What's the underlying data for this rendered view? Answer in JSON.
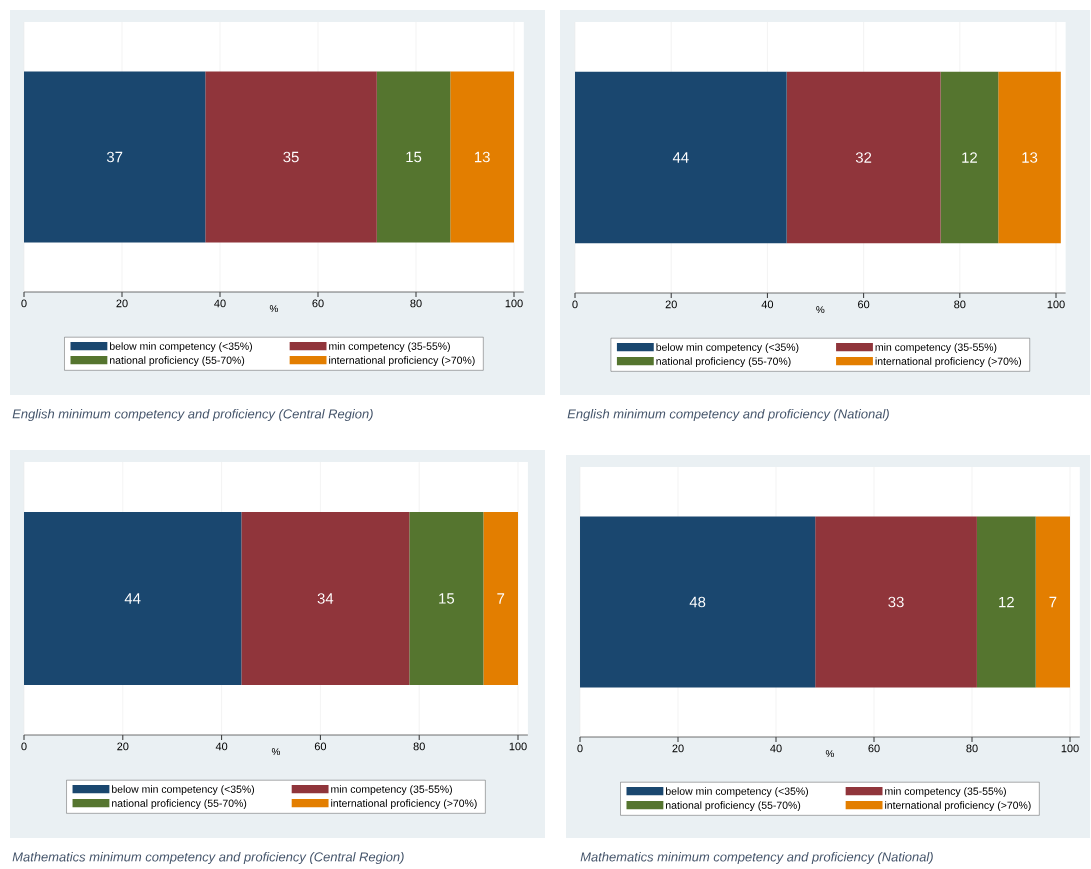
{
  "chart_data": [
    {
      "type": "bar",
      "orientation": "horizontal",
      "stacked": true,
      "categories": [
        null
      ],
      "series": [
        {
          "name": "below min competency (<35%)",
          "color": "#1a476f",
          "values": [
            37
          ]
        },
        {
          "name": "min competency (35-55%)",
          "color": "#90353b",
          "values": [
            35
          ]
        },
        {
          "name": "national proficiency (55-70%)",
          "color": "#55752f",
          "values": [
            15
          ]
        },
        {
          "name": "international proficiency (>70%)",
          "color": "#e37e00",
          "values": [
            13
          ]
        }
      ],
      "xlim": [
        0,
        102
      ],
      "xticks": [
        0,
        20,
        40,
        60,
        80,
        100
      ],
      "xlabel": "%",
      "grid": "x",
      "legend": "bottom",
      "data_labels": true,
      "annotations": [
        "English minimum competency and proficiency (Central Region)"
      ]
    },
    {
      "type": "bar",
      "orientation": "horizontal",
      "stacked": true,
      "categories": [
        null
      ],
      "series": [
        {
          "name": "below min competency (<35%)",
          "color": "#1a476f",
          "values": [
            44
          ]
        },
        {
          "name": "min competency (35-55%)",
          "color": "#90353b",
          "values": [
            32
          ]
        },
        {
          "name": "national proficiency (55-70%)",
          "color": "#55752f",
          "values": [
            12
          ]
        },
        {
          "name": "international proficiency (>70%)",
          "color": "#e37e00",
          "values": [
            13
          ]
        }
      ],
      "xlim": [
        0,
        102
      ],
      "xticks": [
        0,
        20,
        40,
        60,
        80,
        100
      ],
      "xlabel": "%",
      "grid": "x",
      "legend": "bottom",
      "data_labels": true,
      "annotations": [
        "English minimum competency and proficiency (National)"
      ]
    },
    {
      "type": "bar",
      "orientation": "horizontal",
      "stacked": true,
      "categories": [
        null
      ],
      "series": [
        {
          "name": "below min competency (<35%)",
          "color": "#1a476f",
          "values": [
            44
          ]
        },
        {
          "name": "min competency (35-55%)",
          "color": "#90353b",
          "values": [
            34
          ]
        },
        {
          "name": "national proficiency (55-70%)",
          "color": "#55752f",
          "values": [
            15
          ]
        },
        {
          "name": "international proficiency (>70%)",
          "color": "#e37e00",
          "values": [
            7
          ]
        }
      ],
      "xlim": [
        0,
        102
      ],
      "xticks": [
        0,
        20,
        40,
        60,
        80,
        100
      ],
      "xlabel": "%",
      "grid": "x",
      "legend": "bottom",
      "data_labels": true,
      "annotations": [
        "Mathematics minimum competency and proficiency (Central Region)"
      ]
    },
    {
      "type": "bar",
      "orientation": "horizontal",
      "stacked": true,
      "categories": [
        null
      ],
      "series": [
        {
          "name": "below min competency (<35%)",
          "color": "#1a476f",
          "values": [
            48
          ]
        },
        {
          "name": "min competency (35-55%)",
          "color": "#90353b",
          "values": [
            33
          ]
        },
        {
          "name": "national proficiency (55-70%)",
          "color": "#55752f",
          "values": [
            12
          ]
        },
        {
          "name": "international proficiency (>70%)",
          "color": "#e37e00",
          "values": [
            7
          ]
        }
      ],
      "xlim": [
        0,
        102
      ],
      "xticks": [
        0,
        20,
        40,
        60,
        80,
        100
      ],
      "xlabel": "%",
      "grid": "x",
      "legend": "bottom",
      "data_labels": true,
      "annotations": [
        "Mathematics minimum competency and proficiency (National)"
      ]
    }
  ]
}
